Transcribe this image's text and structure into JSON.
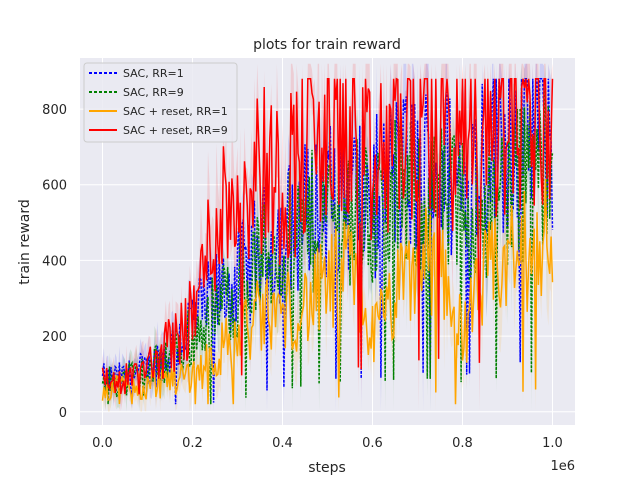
{
  "chart_data": {
    "type": "line",
    "title": "plots for train reward",
    "xlabel": "steps",
    "ylabel": "train reward",
    "x_offset_label": "1e6",
    "xlim": [
      -0.05,
      1.05
    ],
    "ylim": [
      -35,
      935
    ],
    "xticks": [
      0.0,
      0.2,
      0.4,
      0.6,
      0.8,
      1.0
    ],
    "xtick_labels": [
      "0.0",
      "0.2",
      "0.4",
      "0.6",
      "0.8",
      "1.0"
    ],
    "yticks": [
      0,
      200,
      400,
      600,
      800
    ],
    "ytick_labels": [
      "0",
      "200",
      "400",
      "600",
      "800"
    ],
    "grid": true,
    "legend_position": "top-left",
    "series": [
      {
        "name": "SAC, RR=1",
        "color": "#0000ff",
        "style": "dotted",
        "x": [
          0.0,
          0.05,
          0.1,
          0.15,
          0.2,
          0.25,
          0.3,
          0.35,
          0.4,
          0.45,
          0.5,
          0.55,
          0.6,
          0.65,
          0.7,
          0.75,
          0.8,
          0.85,
          0.9,
          0.95,
          1.0
        ],
        "values": [
          80,
          85,
          110,
          160,
          240,
          300,
          350,
          420,
          470,
          520,
          560,
          590,
          560,
          620,
          630,
          650,
          600,
          700,
          750,
          770,
          720
        ]
      },
      {
        "name": "SAC, RR=9",
        "color": "#008000",
        "style": "dotted",
        "x": [
          0.0,
          0.05,
          0.1,
          0.15,
          0.2,
          0.25,
          0.3,
          0.35,
          0.4,
          0.45,
          0.5,
          0.55,
          0.6,
          0.65,
          0.7,
          0.75,
          0.8,
          0.85,
          0.9,
          0.95,
          1.0
        ],
        "values": [
          80,
          80,
          100,
          150,
          200,
          260,
          330,
          390,
          440,
          490,
          520,
          540,
          520,
          560,
          580,
          560,
          530,
          560,
          590,
          640,
          620
        ]
      },
      {
        "name": "SAC + reset, RR=1",
        "color": "#ffa500",
        "style": "solid",
        "x": [
          0.0,
          0.05,
          0.1,
          0.15,
          0.2,
          0.25,
          0.3,
          0.35,
          0.4,
          0.45,
          0.5,
          0.55,
          0.6,
          0.65,
          0.7,
          0.75,
          0.8,
          0.85,
          0.9,
          0.95,
          1.0
        ],
        "values": [
          70,
          60,
          70,
          90,
          100,
          150,
          200,
          250,
          260,
          280,
          330,
          380,
          200,
          300,
          380,
          420,
          200,
          350,
          400,
          430,
          500
        ]
      },
      {
        "name": "SAC + reset, RR=9",
        "color": "#ff0000",
        "style": "solid",
        "x": [
          0.0,
          0.05,
          0.1,
          0.15,
          0.2,
          0.25,
          0.3,
          0.35,
          0.4,
          0.45,
          0.5,
          0.55,
          0.6,
          0.65,
          0.7,
          0.75,
          0.8,
          0.85,
          0.9,
          0.95,
          1.0
        ],
        "values": [
          80,
          80,
          110,
          180,
          250,
          500,
          600,
          650,
          600,
          700,
          720,
          760,
          600,
          740,
          780,
          800,
          700,
          770,
          790,
          820,
          790
        ]
      }
    ]
  }
}
